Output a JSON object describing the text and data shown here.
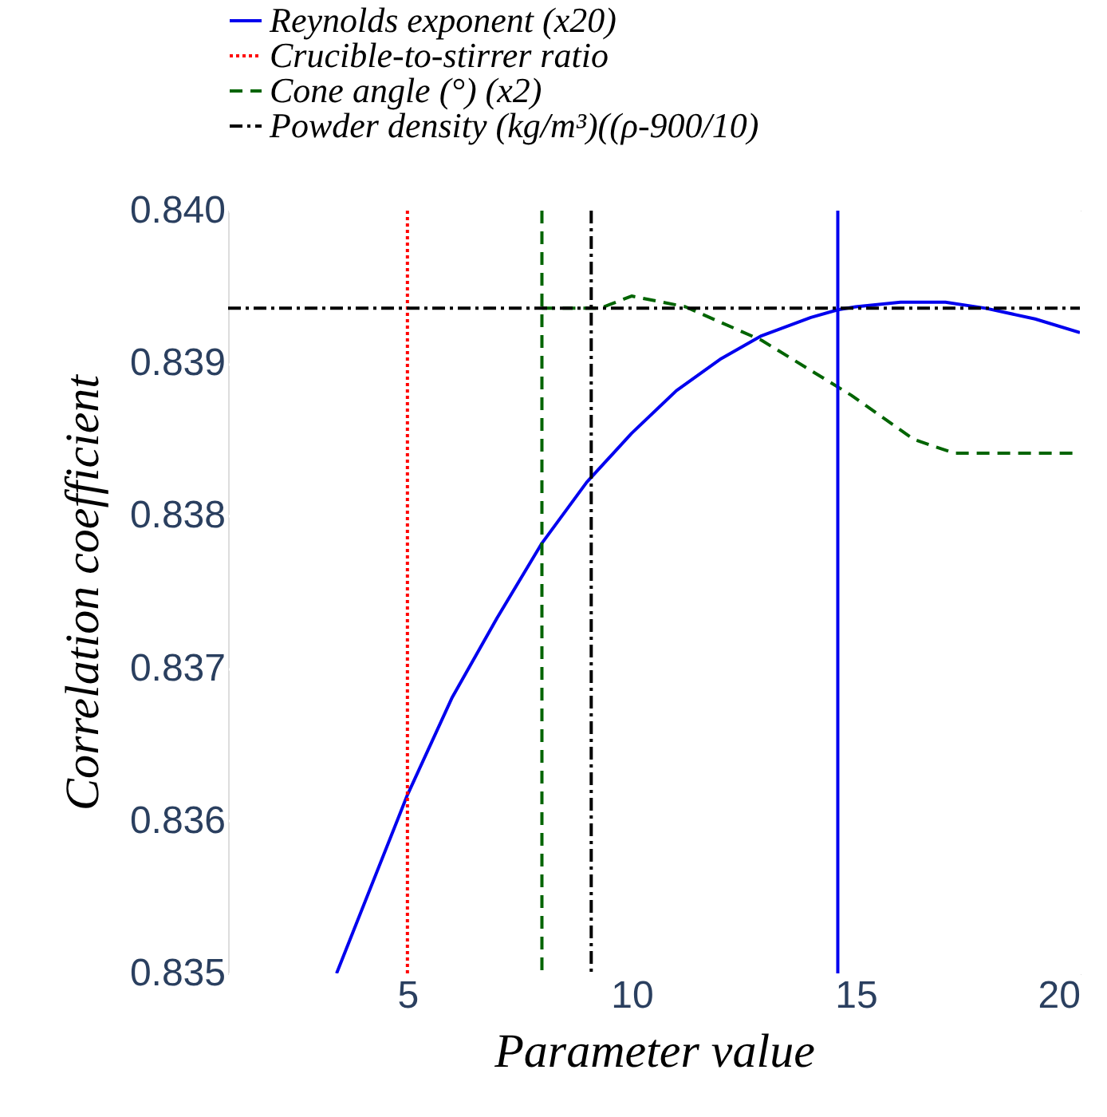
{
  "chart_data": {
    "type": "line",
    "xlabel": "Parameter value",
    "ylabel": "Correlation coefficient",
    "xlim": [
      1,
      20
    ],
    "xticks": [
      5,
      10,
      15,
      20
    ],
    "ylim": [
      0.835,
      0.84
    ],
    "yticks": [
      {
        "value": 0.835,
        "label": "0.835"
      },
      {
        "value": 0.836,
        "label": "0.836"
      },
      {
        "value": 0.837,
        "label": "0.837"
      },
      {
        "value": 0.838,
        "label": "0.838"
      },
      {
        "value": 0.839,
        "label": "0.839"
      },
      {
        "value": 0.84,
        "label": "0.840"
      }
    ],
    "grid": true,
    "legend": "top left",
    "marker": "none",
    "series": [
      {
        "name": "Reynolds exponent (x20)",
        "color": "#0000ee",
        "line_style": "solid",
        "x": [
          3.42,
          5.0,
          6.0,
          7.0,
          8.0,
          9.0,
          10.0,
          11.0,
          12.0,
          12.9,
          14.0,
          14.6,
          15.0,
          16.0,
          17.0,
          17.9,
          19.0,
          20.0
        ],
        "values": [
          0.835,
          0.83617,
          0.83681,
          0.83733,
          0.83782,
          0.83822,
          0.83854,
          0.83882,
          0.83903,
          0.83918,
          0.8393,
          0.83935,
          0.83937,
          0.8394,
          0.8394,
          0.83936,
          0.83929,
          0.8392
        ]
      },
      {
        "name": "Crucible-to-stirrer ratio",
        "color": "#ff0000",
        "line_style": "dotted",
        "x": [
          5,
          5
        ],
        "values": [
          0.835,
          0.84
        ]
      },
      {
        "name": "Cone angle (°) (x2)",
        "color": "#006400",
        "line_style": "dashed",
        "x": [
          8.0,
          9.3,
          10.0,
          11.2,
          12.9,
          14.9,
          16.3,
          17.2,
          20.0
        ],
        "values": [
          0.83936,
          0.83936,
          0.83944,
          0.83937,
          0.83915,
          0.83879,
          0.8385,
          0.83841,
          0.83841
        ]
      },
      {
        "name": "Powder density (kg/m³)((ρ-900/10)",
        "color": "#000000",
        "line_style": "dashdot",
        "x": [
          1,
          20
        ],
        "values": [
          0.83936,
          0.83936
        ]
      }
    ],
    "ref_lines": [
      {
        "axis": "x",
        "value": 8.0,
        "color": "#006400",
        "line_style": "dashed"
      },
      {
        "axis": "x",
        "value": 9.1,
        "color": "#000000",
        "line_style": "dashdot"
      },
      {
        "axis": "x",
        "value": 14.6,
        "color": "#0000ee",
        "line_style": "solid"
      }
    ]
  }
}
